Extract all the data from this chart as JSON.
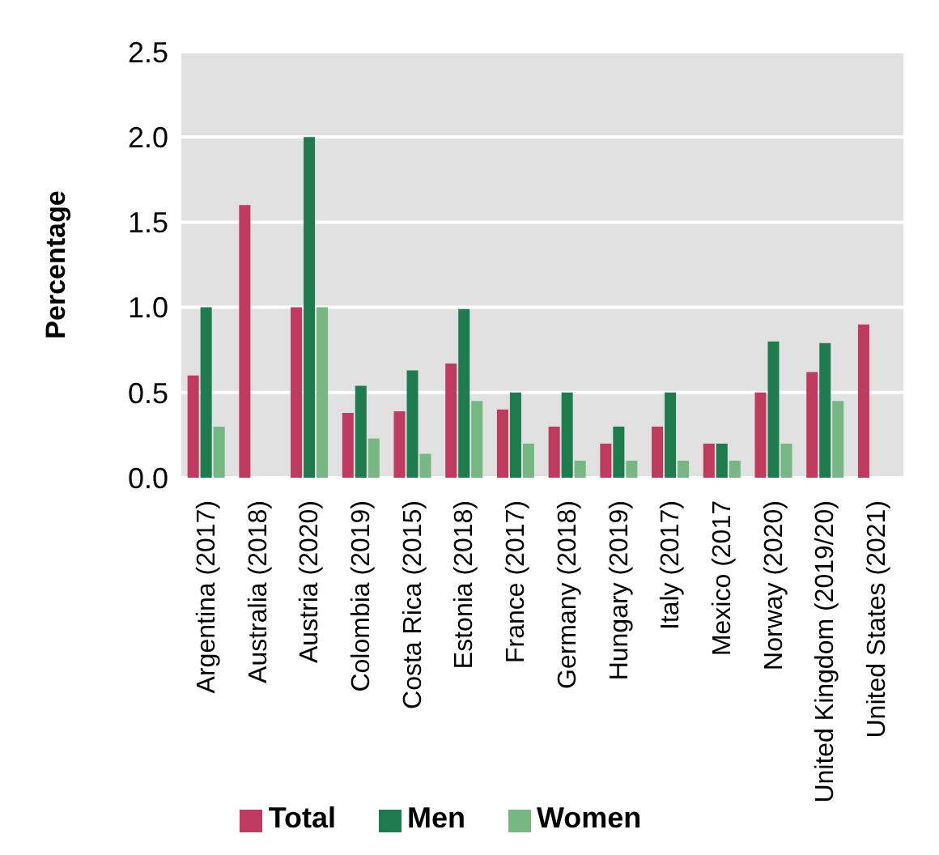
{
  "chart_data": {
    "type": "bar",
    "ylabel": "Percentage",
    "categories": [
      "Argentina (2017)",
      "Australia (2018)",
      "Austria (2020)",
      "Colombia (2019)",
      "Costa Rica (2015)",
      "Estonia (2018)",
      "France (2017)",
      "Germany (2018)",
      "Hungary (2019)",
      "Italy (2017)",
      "Mexico (2017",
      "Norway (2020)",
      "United Kingdom (2019/20)",
      "United States (2021)"
    ],
    "series": [
      {
        "name": "Total",
        "color": "#c0395e",
        "values": [
          0.6,
          1.6,
          1.0,
          0.38,
          0.39,
          0.67,
          0.4,
          0.3,
          0.2,
          0.3,
          0.2,
          0.5,
          0.62,
          0.9
        ]
      },
      {
        "name": "Men",
        "color": "#1e7b4e",
        "values": [
          1.0,
          null,
          2.0,
          0.54,
          0.63,
          0.99,
          0.5,
          0.5,
          0.3,
          0.5,
          0.2,
          0.8,
          0.79,
          null
        ]
      },
      {
        "name": "Women",
        "color": "#76b784",
        "values": [
          0.3,
          null,
          1.0,
          0.23,
          0.14,
          0.45,
          0.2,
          0.1,
          0.1,
          0.1,
          0.1,
          0.2,
          0.45,
          null
        ]
      }
    ],
    "ylim": [
      0,
      2.5
    ],
    "yticks": [
      {
        "value": 0,
        "label": "0.0"
      },
      {
        "value": 0.5,
        "label": "0.5"
      },
      {
        "value": 1,
        "label": "1.0"
      },
      {
        "value": 1.5,
        "label": "1.5"
      },
      {
        "value": 2,
        "label": "2.0"
      },
      {
        "value": 2.5,
        "label": "2.5"
      }
    ],
    "grid": "y",
    "legend": "bottom"
  }
}
